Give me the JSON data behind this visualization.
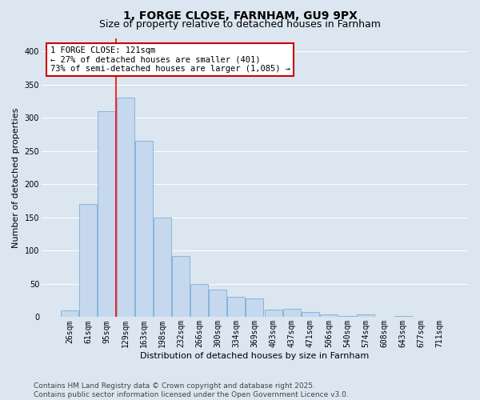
{
  "title": "1, FORGE CLOSE, FARNHAM, GU9 9PX",
  "subtitle": "Size of property relative to detached houses in Farnham",
  "xlabel": "Distribution of detached houses by size in Farnham",
  "ylabel": "Number of detached properties",
  "categories": [
    "26sqm",
    "61sqm",
    "95sqm",
    "129sqm",
    "163sqm",
    "198sqm",
    "232sqm",
    "266sqm",
    "300sqm",
    "334sqm",
    "369sqm",
    "403sqm",
    "437sqm",
    "471sqm",
    "506sqm",
    "540sqm",
    "574sqm",
    "608sqm",
    "643sqm",
    "677sqm",
    "711sqm"
  ],
  "values": [
    10,
    170,
    310,
    330,
    265,
    150,
    92,
    50,
    42,
    30,
    28,
    11,
    12,
    8,
    4,
    2,
    4,
    1,
    2,
    1,
    1
  ],
  "bar_color": "#c5d8ee",
  "bar_edge_color": "#7aafd4",
  "background_color": "#dce6f1",
  "grid_color": "#ffffff",
  "red_line_index": 3,
  "annotation_text": "1 FORGE CLOSE: 121sqm\n← 27% of detached houses are smaller (401)\n73% of semi-detached houses are larger (1,085) →",
  "annotation_box_facecolor": "#ffffff",
  "annotation_box_edgecolor": "#cc0000",
  "ylim": [
    0,
    420
  ],
  "yticks": [
    0,
    50,
    100,
    150,
    200,
    250,
    300,
    350,
    400
  ],
  "footer": "Contains HM Land Registry data © Crown copyright and database right 2025.\nContains public sector information licensed under the Open Government Licence v3.0.",
  "title_fontsize": 10,
  "subtitle_fontsize": 9,
  "axis_label_fontsize": 8,
  "tick_fontsize": 7,
  "annotation_fontsize": 7.5,
  "footer_fontsize": 6.5
}
